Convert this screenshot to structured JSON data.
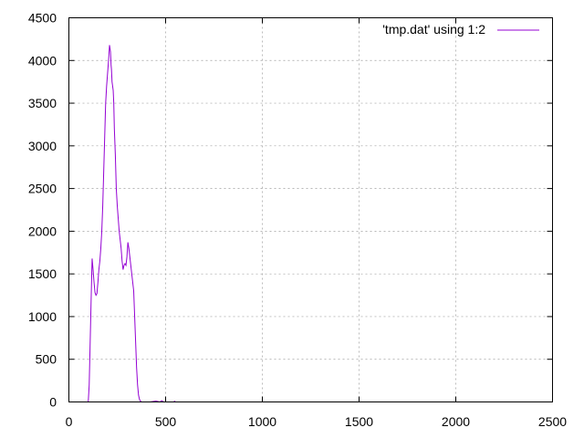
{
  "chart_data": {
    "type": "line",
    "title": "",
    "xlabel": "",
    "ylabel": "",
    "xlim": [
      0,
      2500
    ],
    "ylim": [
      0,
      4500
    ],
    "xticks": [
      0,
      500,
      1000,
      1500,
      2000,
      2500
    ],
    "yticks": [
      0,
      500,
      1000,
      1500,
      2000,
      2500,
      3000,
      3500,
      4000,
      4500
    ],
    "grid": true,
    "legend_position": "top-right",
    "series": [
      {
        "name": "'tmp.dat' using 1:2",
        "color": "#9400d3",
        "x": [
          100,
          105,
          110,
          115,
          120,
          125,
          130,
          135,
          140,
          145,
          150,
          155,
          160,
          165,
          170,
          175,
          180,
          185,
          190,
          195,
          200,
          205,
          210,
          215,
          218,
          220,
          223,
          226,
          229,
          232,
          235,
          240,
          245,
          250,
          255,
          260,
          265,
          270,
          275,
          280,
          285,
          290,
          295,
          300,
          305,
          310,
          315,
          320,
          325,
          330,
          335,
          340,
          345,
          350,
          355,
          360,
          365,
          370,
          375,
          380,
          390,
          400,
          420,
          450,
          470,
          480,
          490,
          500,
          520,
          540,
          550
        ],
        "y": [
          0,
          200,
          700,
          1200,
          1680,
          1550,
          1400,
          1280,
          1250,
          1270,
          1400,
          1550,
          1650,
          1800,
          2000,
          2300,
          2700,
          3100,
          3500,
          3700,
          3850,
          4000,
          4180,
          4100,
          3950,
          3900,
          3750,
          3700,
          3650,
          3500,
          3200,
          2900,
          2500,
          2300,
          2150,
          2000,
          1900,
          1800,
          1650,
          1550,
          1600,
          1620,
          1600,
          1700,
          1870,
          1800,
          1700,
          1600,
          1500,
          1400,
          1300,
          1000,
          700,
          400,
          200,
          80,
          30,
          10,
          0,
          0,
          0,
          0,
          0,
          10,
          0,
          15,
          0,
          0,
          0,
          0,
          10
        ]
      }
    ]
  }
}
